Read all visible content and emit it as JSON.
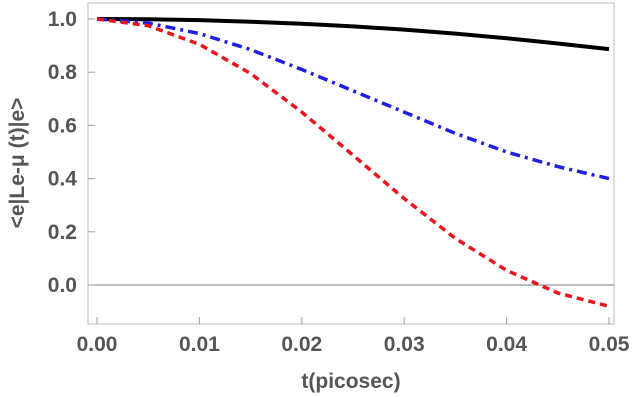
{
  "chart_data": {
    "type": "line",
    "title": "",
    "xlabel": "t(picosec)",
    "ylabel": "<e|Le-μ (t)|e>",
    "xlim": [
      0,
      0.05
    ],
    "ylim": [
      -0.13,
      1.04
    ],
    "grid": false,
    "legend": "none",
    "x_ticks": [
      {
        "value": 0.0,
        "label": "0.00"
      },
      {
        "value": 0.01,
        "label": "0.01"
      },
      {
        "value": 0.02,
        "label": "0.02"
      },
      {
        "value": 0.03,
        "label": "0.03"
      },
      {
        "value": 0.04,
        "label": "0.04"
      },
      {
        "value": 0.05,
        "label": "0.05"
      }
    ],
    "y_ticks": [
      {
        "value": 0.0,
        "label": "0.0"
      },
      {
        "value": 0.2,
        "label": "0.2"
      },
      {
        "value": 0.4,
        "label": "0.4"
      },
      {
        "value": 0.6,
        "label": "0.6"
      },
      {
        "value": 0.8,
        "label": "0.8"
      },
      {
        "value": 1.0,
        "label": "1.0"
      }
    ],
    "x": [
      0.0,
      0.005,
      0.01,
      0.015,
      0.02,
      0.025,
      0.03,
      0.035,
      0.04,
      0.045,
      0.05
    ],
    "series": [
      {
        "color": "#000000",
        "style": "solid",
        "values": [
          1.0,
          0.999,
          0.996,
          0.99,
          0.982,
          0.972,
          0.96,
          0.945,
          0.928,
          0.908,
          0.887
        ]
      },
      {
        "color": "#1f1fe0",
        "style": "dashdot",
        "values": [
          1.0,
          0.985,
          0.945,
          0.885,
          0.81,
          0.73,
          0.65,
          0.57,
          0.5,
          0.445,
          0.4
        ]
      },
      {
        "color": "#e8141e",
        "style": "dashed",
        "values": [
          1.0,
          0.975,
          0.905,
          0.795,
          0.65,
          0.488,
          0.325,
          0.175,
          0.055,
          -0.03,
          -0.08
        ]
      }
    ],
    "zero_line": true
  }
}
